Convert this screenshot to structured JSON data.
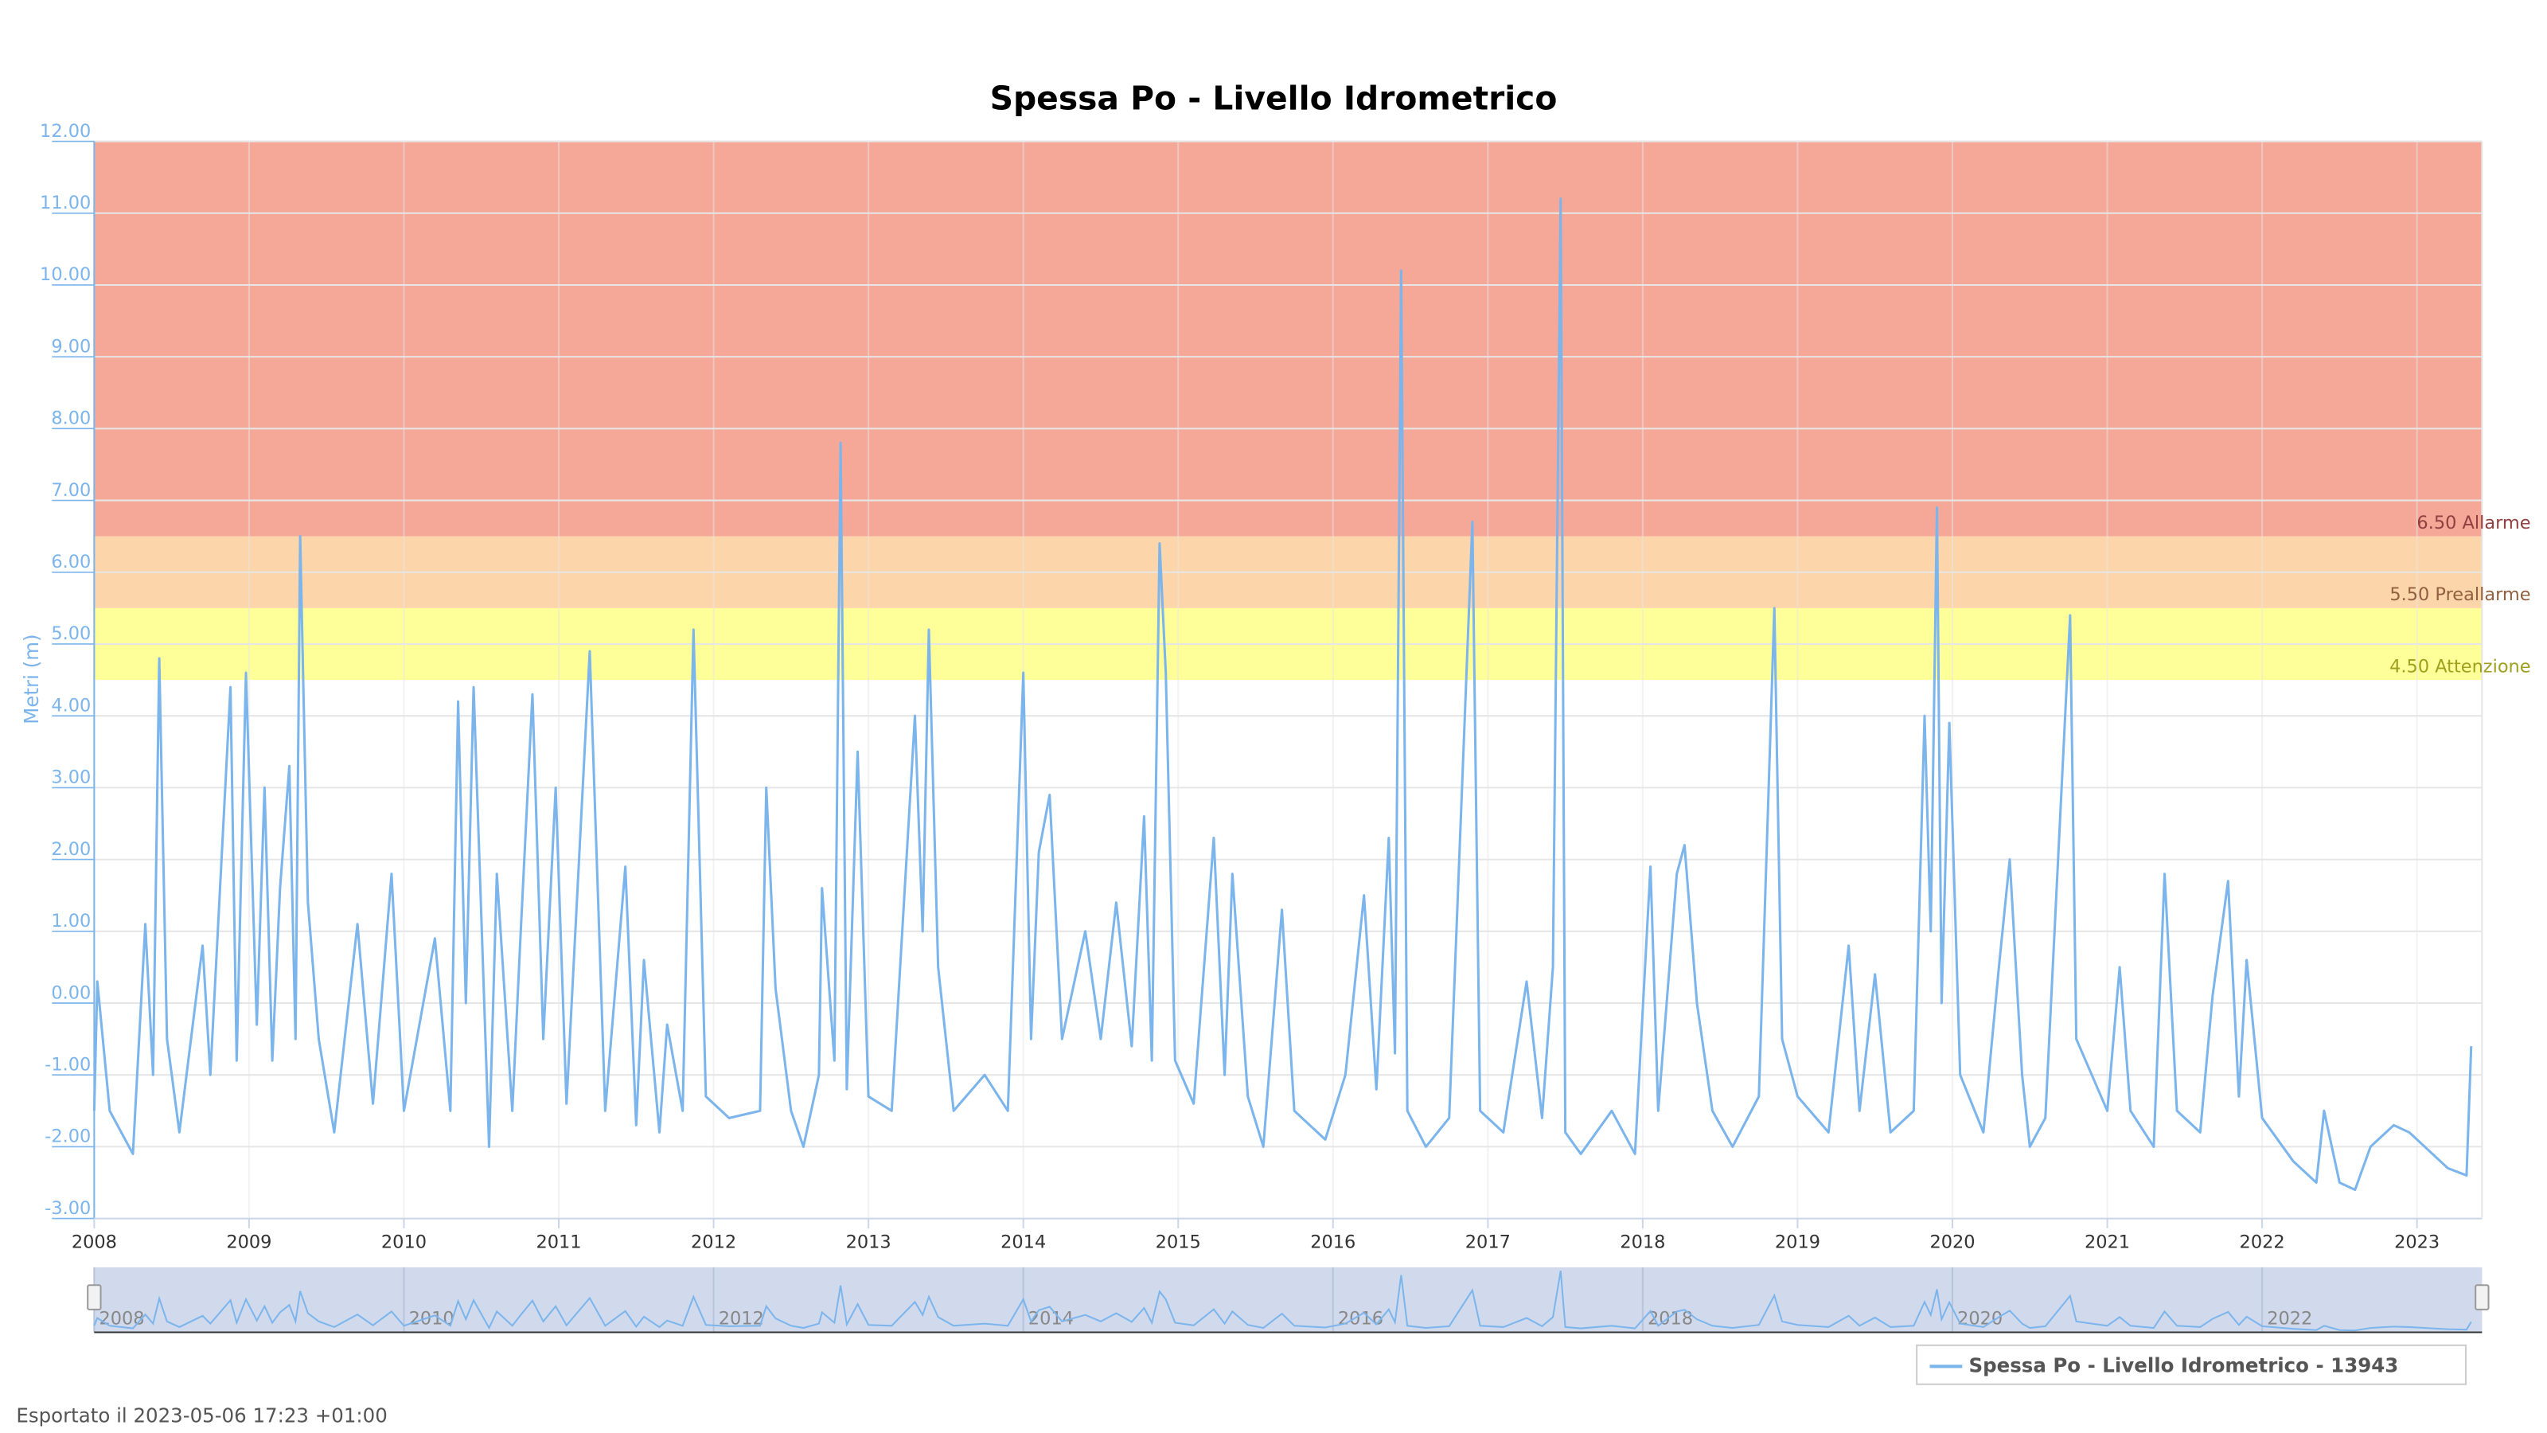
{
  "chart_data": {
    "type": "line",
    "title": "Spessa Po - Livello Idrometrico",
    "y_label": "Metri (m)",
    "footer": "Esportato il 2023-05-06 17:23 +01:00",
    "grid": true,
    "xlim": [
      2008,
      2023.42
    ],
    "xticks": [
      2008,
      2009,
      2010,
      2011,
      2012,
      2013,
      2014,
      2015,
      2016,
      2017,
      2018,
      2019,
      2020,
      2021,
      2022,
      2023
    ],
    "navigator_ticks": [
      2008,
      2010,
      2012,
      2014,
      2016,
      2018,
      2020,
      2022
    ],
    "ylim": [
      -3,
      12
    ],
    "yticks": [
      {
        "value": -3,
        "label": "-3.00"
      },
      {
        "value": -2,
        "label": "-2.00"
      },
      {
        "value": -1,
        "label": "-1.00"
      },
      {
        "value": 0,
        "label": "0.00"
      },
      {
        "value": 1,
        "label": "1.00"
      },
      {
        "value": 2,
        "label": "2.00"
      },
      {
        "value": 3,
        "label": "3.00"
      },
      {
        "value": 4,
        "label": "4.00"
      },
      {
        "value": 5,
        "label": "5.00"
      },
      {
        "value": 6,
        "label": "6.00"
      },
      {
        "value": 7,
        "label": "7.00"
      },
      {
        "value": 8,
        "label": "8.00"
      },
      {
        "value": 9,
        "label": "9.00"
      },
      {
        "value": 10,
        "label": "10.00"
      },
      {
        "value": 11,
        "label": "11.00"
      },
      {
        "value": 12,
        "label": "12.00"
      }
    ],
    "thresholds": [
      {
        "value": 4.5,
        "label": "4.50 Attenzione",
        "color": "#ffff99",
        "text_color": "#a0a020"
      },
      {
        "value": 5.5,
        "label": "5.50 Preallarme",
        "color": "#fdd5aa",
        "text_color": "#906040"
      },
      {
        "value": 6.5,
        "label": "6.50 Allarme",
        "color": "#f5a898",
        "text_color": "#904040"
      }
    ],
    "series": [
      {
        "name": "Spessa Po - Livello Idrometrico - 13943",
        "color": "#7cb5ec",
        "x": [
          2008.0,
          2008.02,
          2008.1,
          2008.25,
          2008.33,
          2008.38,
          2008.42,
          2008.47,
          2008.55,
          2008.7,
          2008.75,
          2008.88,
          2008.92,
          2008.98,
          2009.05,
          2009.1,
          2009.15,
          2009.2,
          2009.26,
          2009.3,
          2009.33,
          2009.38,
          2009.45,
          2009.55,
          2009.7,
          2009.8,
          2009.92,
          2010.0,
          2010.2,
          2010.3,
          2010.35,
          2010.4,
          2010.45,
          2010.55,
          2010.6,
          2010.7,
          2010.75,
          2010.83,
          2010.9,
          2010.98,
          2011.05,
          2011.2,
          2011.3,
          2011.43,
          2011.5,
          2011.55,
          2011.65,
          2011.7,
          2011.8,
          2011.87,
          2011.95,
          2012.1,
          2012.3,
          2012.34,
          2012.4,
          2012.5,
          2012.58,
          2012.68,
          2012.7,
          2012.78,
          2012.82,
          2012.86,
          2012.93,
          2013.0,
          2013.15,
          2013.3,
          2013.35,
          2013.39,
          2013.45,
          2013.55,
          2013.75,
          2013.9,
          2014.0,
          2014.05,
          2014.1,
          2014.17,
          2014.25,
          2014.4,
          2014.5,
          2014.6,
          2014.7,
          2014.78,
          2014.83,
          2014.88,
          2014.92,
          2014.98,
          2015.1,
          2015.23,
          2015.3,
          2015.35,
          2015.45,
          2015.55,
          2015.67,
          2015.75,
          2015.95,
          2016.08,
          2016.2,
          2016.28,
          2016.36,
          2016.4,
          2016.44,
          2016.48,
          2016.6,
          2016.75,
          2016.9,
          2016.95,
          2017.1,
          2017.25,
          2017.35,
          2017.42,
          2017.47,
          2017.5,
          2017.6,
          2017.8,
          2017.95,
          2018.05,
          2018.1,
          2018.22,
          2018.27,
          2018.35,
          2018.45,
          2018.58,
          2018.75,
          2018.85,
          2018.9,
          2019.0,
          2019.2,
          2019.33,
          2019.4,
          2019.5,
          2019.6,
          2019.75,
          2019.82,
          2019.86,
          2019.9,
          2019.93,
          2019.98,
          2020.05,
          2020.2,
          2020.3,
          2020.37,
          2020.45,
          2020.5,
          2020.6,
          2020.76,
          2020.8,
          2020.9,
          2021.0,
          2021.08,
          2021.15,
          2021.3,
          2021.37,
          2021.45,
          2021.6,
          2021.68,
          2021.78,
          2021.85,
          2021.9,
          2022.0,
          2022.2,
          2022.35,
          2022.4,
          2022.5,
          2022.6,
          2022.7,
          2022.85,
          2022.95,
          2023.05,
          2023.2,
          2023.32,
          2023.35
        ],
        "values": [
          -1.5,
          0.3,
          -1.5,
          -2.1,
          1.1,
          -1.0,
          4.8,
          -0.5,
          -1.8,
          0.8,
          -1.0,
          4.4,
          -0.8,
          4.6,
          -0.3,
          3.0,
          -0.8,
          1.6,
          3.3,
          -0.5,
          6.5,
          1.4,
          -0.5,
          -1.8,
          1.1,
          -1.4,
          1.8,
          -1.5,
          0.9,
          -1.5,
          4.2,
          0.0,
          4.4,
          -2.0,
          1.8,
          -1.5,
          0.8,
          4.3,
          -0.5,
          3.0,
          -1.4,
          4.9,
          -1.5,
          1.9,
          -1.7,
          0.6,
          -1.8,
          -0.3,
          -1.5,
          5.2,
          -1.3,
          -1.6,
          -1.5,
          3.0,
          0.2,
          -1.5,
          -2.0,
          -1.0,
          1.6,
          -0.8,
          7.8,
          -1.2,
          3.5,
          -1.3,
          -1.5,
          4.0,
          1.0,
          5.2,
          0.5,
          -1.5,
          -1.0,
          -1.5,
          4.6,
          -0.5,
          2.1,
          2.9,
          -0.5,
          1.0,
          -0.5,
          1.4,
          -0.6,
          2.6,
          -0.8,
          6.4,
          4.6,
          -0.8,
          -1.4,
          2.3,
          -1.0,
          1.8,
          -1.3,
          -2.0,
          1.3,
          -1.5,
          -1.9,
          -1.0,
          1.5,
          -1.2,
          2.3,
          -0.7,
          10.2,
          -1.5,
          -2.0,
          -1.6,
          6.7,
          -1.5,
          -1.8,
          0.3,
          -1.6,
          0.5,
          11.2,
          -1.8,
          -2.1,
          -1.5,
          -2.1,
          1.9,
          -1.5,
          1.8,
          2.2,
          0.0,
          -1.5,
          -2.0,
          -1.3,
          5.5,
          -0.5,
          -1.3,
          -1.8,
          0.8,
          -1.5,
          0.4,
          -1.8,
          -1.5,
          4.0,
          1.0,
          6.9,
          0.0,
          3.9,
          -1.0,
          -1.8,
          0.5,
          2.0,
          -1.0,
          -2.0,
          -1.6,
          5.4,
          -0.5,
          -1.0,
          -1.5,
          0.5,
          -1.5,
          -2.0,
          1.8,
          -1.5,
          -1.8,
          0.1,
          1.7,
          -1.3,
          0.6,
          -1.6,
          -2.2,
          -2.5,
          -1.5,
          -2.5,
          -2.6,
          -2.0,
          -1.7,
          -1.8,
          -2.0,
          -2.3,
          -2.4,
          -0.6
        ]
      }
    ]
  }
}
